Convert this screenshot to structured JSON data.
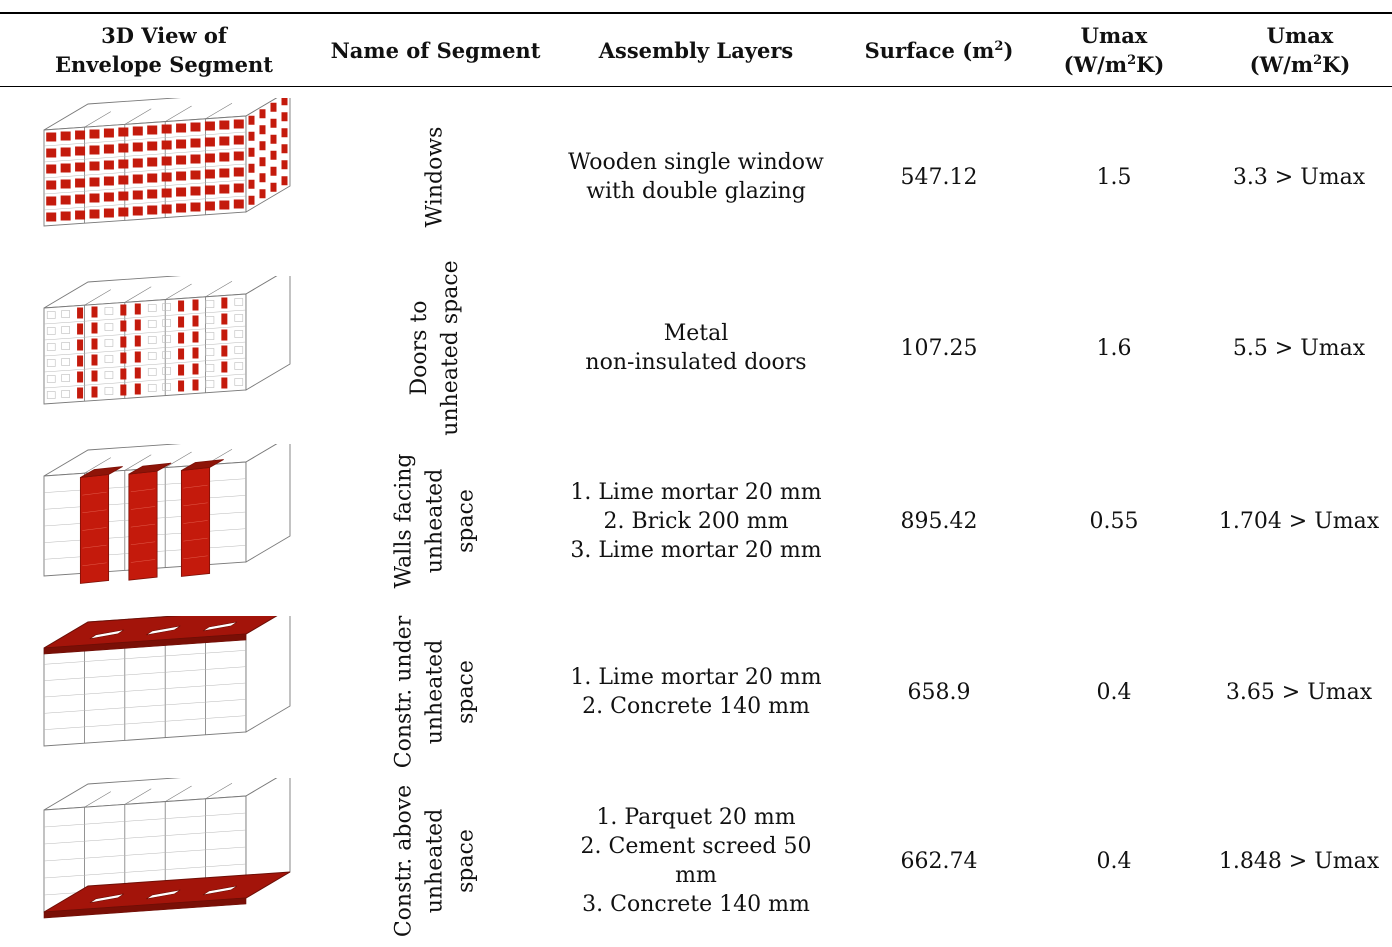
{
  "headers": {
    "view": [
      "3D View of",
      "Envelope Segment"
    ],
    "name": "Name of Segment",
    "layers": "Assembly Layers",
    "surface": "Surface (m",
    "surface_sup": "2",
    "surface_end": ")",
    "umax1_line1": "Umax",
    "umax1_unit_a": "(W/m",
    "umax1_unit_sup": "2",
    "umax1_unit_b": "K)",
    "umax2_line1": "Umax",
    "umax2_unit_a": "(W/m",
    "umax2_unit_sup": "2",
    "umax2_unit_b": "K)"
  },
  "highlight_color": "#c41a0c",
  "rows": [
    {
      "icon": "building-windows-highlight",
      "name": [
        "Windows"
      ],
      "layers": [
        "Wooden single window",
        "with double glazing"
      ],
      "surface": "547.12",
      "umax": "1.5",
      "u_current": "3.3 > Umax"
    },
    {
      "icon": "building-doors-highlight",
      "name": [
        "Doors to",
        "unheated space"
      ],
      "layers": [
        "Metal",
        "non-insulated doors"
      ],
      "surface": "107.25",
      "umax": "1.6",
      "u_current": "5.5 > Umax"
    },
    {
      "icon": "building-walls-highlight",
      "name": [
        "Walls facing",
        "unheated",
        "space"
      ],
      "layers": [
        "1. Lime mortar 20 mm",
        "2. Brick 200 mm",
        "3. Lime mortar 20 mm"
      ],
      "surface": "895.42",
      "umax": "0.55",
      "u_current": "1.704 > Umax"
    },
    {
      "icon": "building-roof-highlight",
      "name": [
        "Constr. under",
        "unheated",
        "space"
      ],
      "layers": [
        "1. Lime mortar 20 mm",
        "2. Concrete 140 mm"
      ],
      "surface": "658.9",
      "umax": "0.4",
      "u_current": "3.65 > Umax"
    },
    {
      "icon": "building-floor-highlight",
      "name": [
        "Constr. above",
        "unheated",
        "space"
      ],
      "layers": [
        "1. Parquet 20 mm",
        "2. Cement screed 50 mm",
        "3. Concrete 140 mm"
      ],
      "surface": "662.74",
      "umax": "0.4",
      "u_current": "1.848 > Umax"
    }
  ]
}
